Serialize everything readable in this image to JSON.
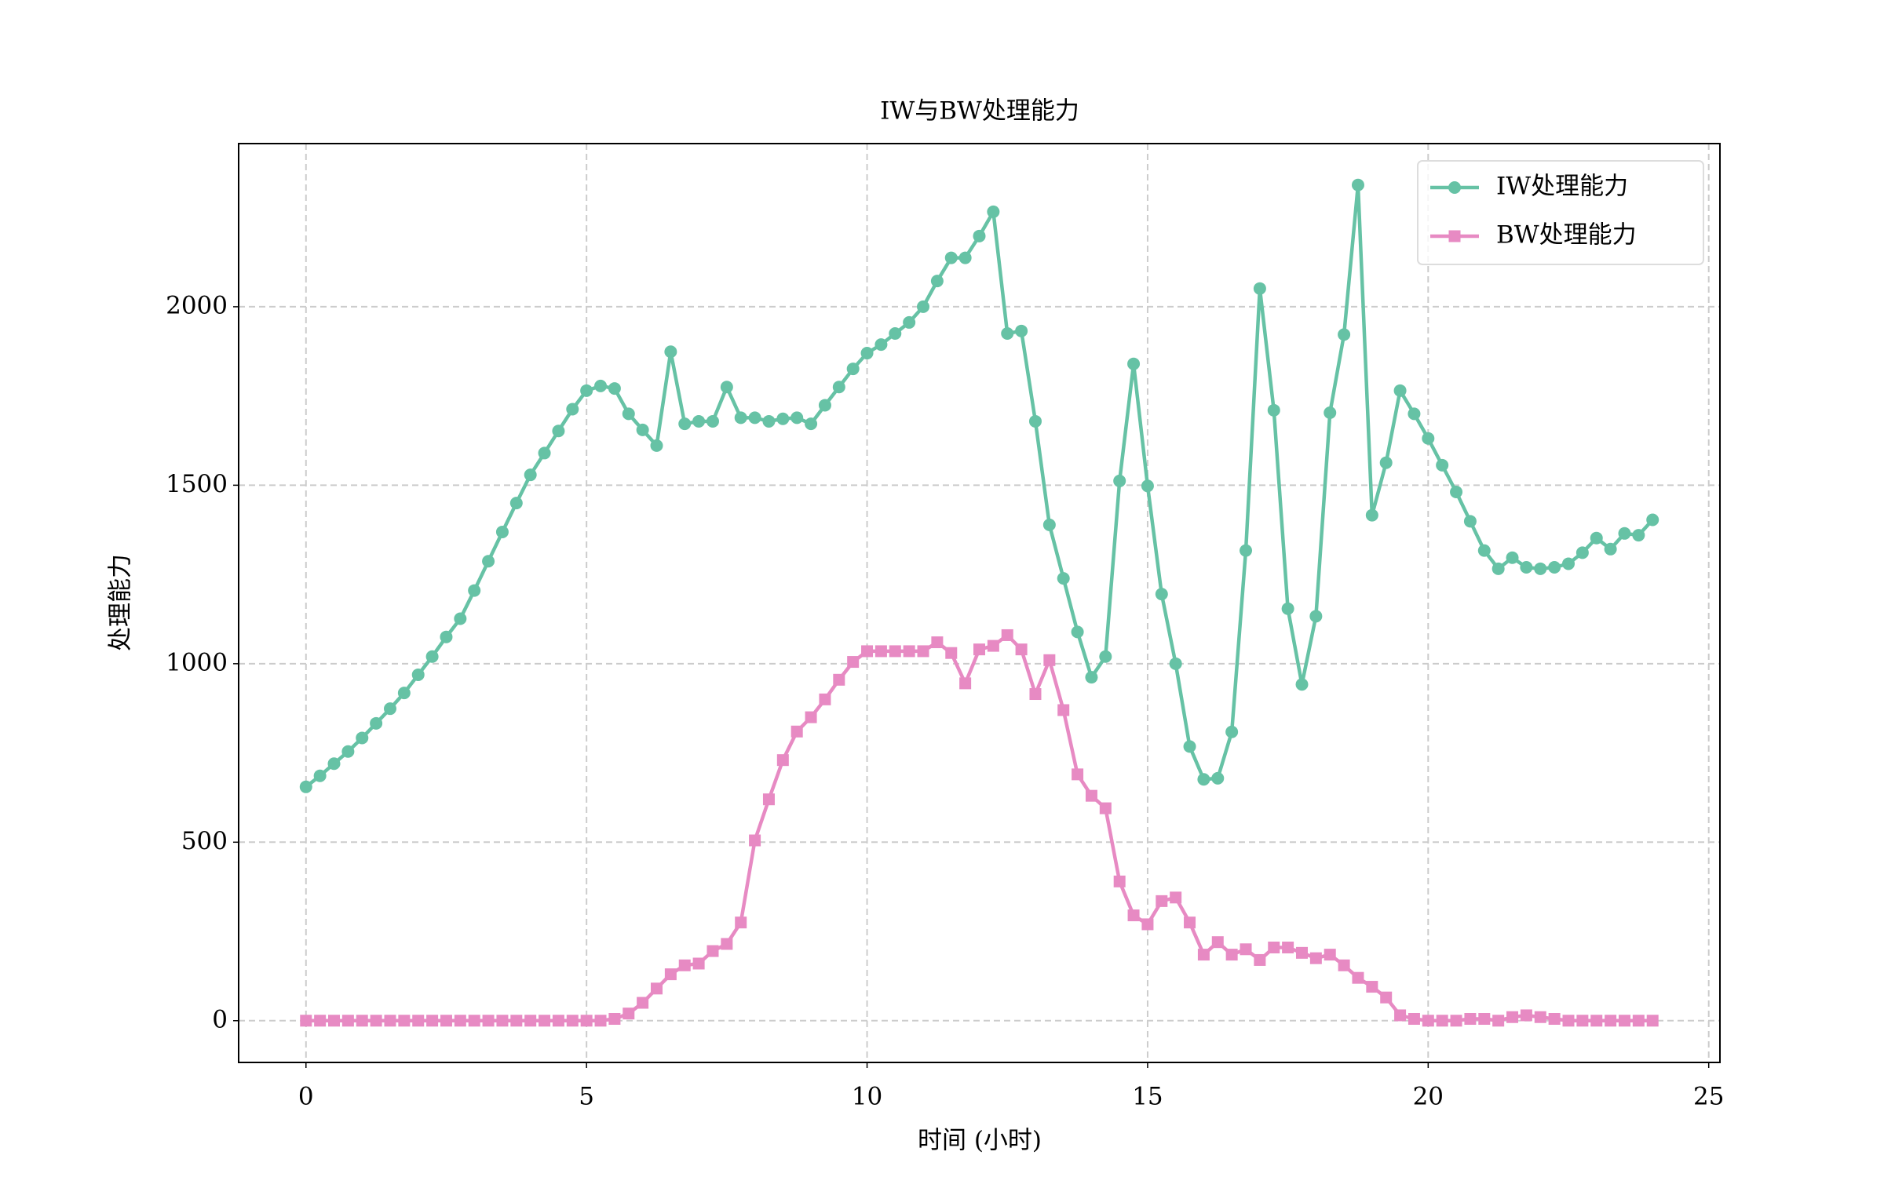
{
  "chart_data": {
    "type": "line",
    "title": "IW与BW处理能力",
    "xlabel": "时间 (小时)",
    "ylabel": "处理能力",
    "x": [
      0,
      0.25,
      0.5,
      0.75,
      1,
      1.25,
      1.5,
      1.75,
      2,
      2.25,
      2.5,
      2.75,
      3,
      3.25,
      3.5,
      3.75,
      4,
      4.25,
      4.5,
      4.75,
      5,
      5.25,
      5.5,
      5.75,
      6,
      6.25,
      6.5,
      6.75,
      7,
      7.25,
      7.5,
      7.75,
      8,
      8.25,
      8.5,
      8.75,
      9,
      9.25,
      9.5,
      9.75,
      10,
      10.25,
      10.5,
      10.75,
      11,
      11.25,
      11.5,
      11.75,
      12,
      12.25,
      12.5,
      12.75,
      13,
      13.25,
      13.5,
      13.75,
      14,
      14.25,
      14.5,
      14.75,
      15,
      15.25,
      15.5,
      15.75,
      16,
      16.25,
      16.5,
      16.75,
      17,
      17.25,
      17.5,
      17.75,
      18,
      18.25,
      18.5,
      18.75,
      19,
      19.25,
      19.5,
      19.75,
      20,
      20.25,
      20.5,
      20.75,
      21,
      21.25,
      21.5,
      21.75,
      22,
      22.25,
      22.5,
      22.75,
      23,
      23.25,
      23.5,
      23.75,
      24
    ],
    "series": [
      {
        "name": "IW处理能力",
        "color": "#66c2a5",
        "marker": "circle",
        "values": [
          655,
          686,
          720,
          754,
          792,
          833,
          874,
          918,
          969,
          1020,
          1075,
          1126,
          1205,
          1287,
          1369,
          1450,
          1529,
          1590,
          1652,
          1713,
          1765,
          1778,
          1771,
          1700,
          1655,
          1611,
          1874,
          1672,
          1679,
          1679,
          1775,
          1689,
          1689,
          1679,
          1686,
          1689,
          1672,
          1724,
          1775,
          1826,
          1870,
          1894,
          1925,
          1956,
          2000,
          2072,
          2137,
          2137,
          2198,
          2266,
          1925,
          1932,
          1679,
          1389,
          1239,
          1089,
          962,
          1020,
          1512,
          1840,
          1498,
          1195,
          1000,
          768,
          676,
          679,
          809,
          1317,
          2051,
          1710,
          1154,
          942,
          1133,
          1703,
          1922,
          2341,
          1416,
          1563,
          1765,
          1700,
          1631,
          1556,
          1481,
          1399,
          1317,
          1266,
          1297,
          1270,
          1266,
          1270,
          1280,
          1311,
          1352,
          1321,
          1365,
          1360,
          1403
        ]
      },
      {
        "name": "BW处理能力",
        "color": "#e78ac3",
        "marker": "square",
        "values": [
          0,
          0,
          0,
          0,
          0,
          0,
          0,
          0,
          0,
          0,
          0,
          0,
          0,
          0,
          0,
          0,
          0,
          0,
          0,
          0,
          0,
          0,
          5,
          20,
          50,
          90,
          130,
          155,
          160,
          195,
          215,
          275,
          505,
          620,
          730,
          810,
          850,
          900,
          955,
          1005,
          1035,
          1035,
          1035,
          1035,
          1035,
          1060,
          1030,
          945,
          1040,
          1050,
          1080,
          1040,
          915,
          1010,
          870,
          690,
          630,
          595,
          390,
          295,
          270,
          335,
          345,
          275,
          185,
          220,
          185,
          200,
          170,
          205,
          205,
          190,
          175,
          185,
          155,
          120,
          95,
          65,
          15,
          5,
          0,
          0,
          0,
          5,
          5,
          0,
          10,
          15,
          10,
          5,
          0,
          0,
          0,
          0,
          0,
          0,
          0
        ]
      }
    ],
    "xlim": [
      -1.2,
      25.2
    ],
    "ylim": [
      -117,
      2457
    ],
    "xticks": [
      0,
      5,
      10,
      15,
      20,
      25
    ],
    "yticks": [
      0,
      500,
      1000,
      1500,
      2000
    ],
    "grid": true,
    "legend": "upper right"
  }
}
